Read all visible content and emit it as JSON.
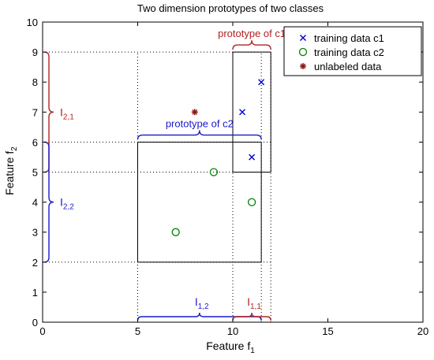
{
  "chart_data": {
    "type": "scatter",
    "title": "Two dimension prototypes of two classes",
    "xlabel": {
      "main": "Feature f",
      "sub": "1"
    },
    "ylabel": {
      "main": "Feature f",
      "sub": "2"
    },
    "xlim": [
      0,
      20
    ],
    "ylim": [
      0,
      10
    ],
    "xticks": [
      0,
      5,
      10,
      15,
      20
    ],
    "yticks": [
      0,
      1,
      2,
      3,
      4,
      5,
      6,
      7,
      8,
      9,
      10
    ],
    "grid": false,
    "legend_position": "top-right",
    "series": [
      {
        "name": "training data c1",
        "marker": "x",
        "color": "#0000cc",
        "points": [
          [
            11.5,
            8
          ],
          [
            10.5,
            7
          ],
          [
            11,
            5.5
          ]
        ]
      },
      {
        "name": "training data c2",
        "marker": "o",
        "color": "#008000",
        "points": [
          [
            9,
            5
          ],
          [
            11,
            4
          ],
          [
            7,
            3
          ]
        ]
      },
      {
        "name": "unlabeled data",
        "marker": "*",
        "color": "#8b1a1a",
        "points": [
          [
            8,
            7
          ]
        ]
      }
    ],
    "prototypes": [
      {
        "label": "prototype of c1",
        "color": "#b22222",
        "x": [
          10,
          12
        ],
        "y": [
          5,
          9
        ]
      },
      {
        "label": "prototype of c2",
        "color": "#1a1acc",
        "x": [
          5,
          11.5
        ],
        "y": [
          2,
          6
        ]
      }
    ],
    "intervals": [
      {
        "label": "I",
        "sub": "2,1",
        "color": "#b22222",
        "axis": "y",
        "range": [
          5,
          9
        ]
      },
      {
        "label": "I",
        "sub": "2,2",
        "color": "#1a1acc",
        "axis": "y",
        "range": [
          2,
          6
        ]
      },
      {
        "label": "I",
        "sub": "1,2",
        "color": "#1a1acc",
        "axis": "x",
        "range": [
          5,
          11.5
        ]
      },
      {
        "label": "I",
        "sub": "1,1",
        "color": "#b22222",
        "axis": "x",
        "range": [
          10,
          12
        ]
      }
    ]
  }
}
